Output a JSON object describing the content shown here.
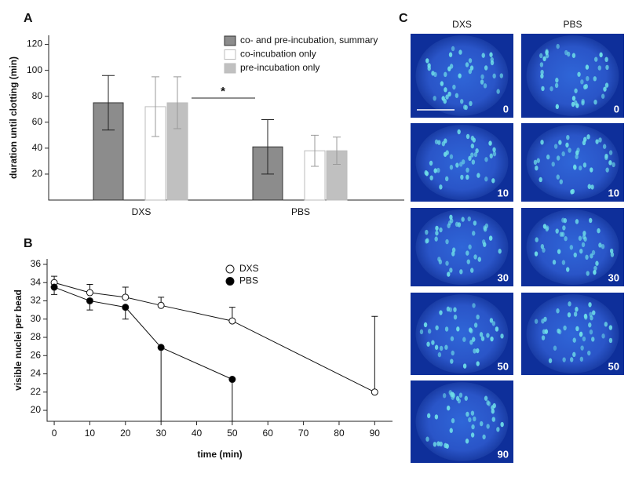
{
  "chart_data": [
    {
      "type": "bar",
      "panel": "A",
      "ylabel": "duration until clotting (min)",
      "categories": [
        "DXS",
        "PBS"
      ],
      "series": [
        {
          "name": "co- and pre-incubation, summary",
          "color": "#8c8c8c",
          "values": [
            75,
            41
          ],
          "errors": [
            21,
            21
          ]
        },
        {
          "name": "co-incubation only",
          "color": "#ffffff",
          "values": [
            72,
            38
          ],
          "errors": [
            23,
            12
          ]
        },
        {
          "name": "pre-incubation only",
          "color": "#c0c0c0",
          "values": [
            75,
            38
          ],
          "errors": [
            20,
            10.5
          ]
        }
      ],
      "annotation": "*",
      "ylim": [
        0,
        127
      ],
      "yticks": [
        20,
        40,
        60,
        80,
        100,
        120
      ]
    },
    {
      "type": "line",
      "panel": "B",
      "xlabel": "time (min)",
      "ylabel": "visible nuclei per bead",
      "series": [
        {
          "name": "DXS",
          "color": "#ffffff",
          "x": [
            0,
            10,
            20,
            30,
            50,
            90
          ],
          "values": [
            34,
            32.9,
            32.4,
            31.5,
            29.8,
            22
          ],
          "errors": [
            0.7,
            0.9,
            1.1,
            0.9,
            1.5,
            8.3
          ],
          "error_direction": "up"
        },
        {
          "name": "PBS",
          "color": "#000000",
          "x": [
            0,
            10,
            20,
            30,
            50
          ],
          "values": [
            33.5,
            32,
            31.3,
            26.9,
            23.4
          ],
          "errors": [
            0.8,
            1,
            1.3,
            8.1,
            4.6
          ],
          "error_direction": "down"
        }
      ],
      "xlim": [
        -2,
        95
      ],
      "xticks": [
        0,
        10,
        20,
        30,
        40,
        50,
        60,
        70,
        80,
        90
      ],
      "ylim": [
        18.8,
        36.6
      ],
      "yticks": [
        20,
        22,
        24,
        26,
        28,
        30,
        32,
        34,
        36
      ]
    }
  ],
  "panel_c": {
    "label": "C",
    "columns": [
      "DXS",
      "PBS"
    ],
    "images": [
      {
        "column": 0,
        "label": "0"
      },
      {
        "column": 1,
        "label": "0"
      },
      {
        "column": 0,
        "label": "10"
      },
      {
        "column": 1,
        "label": "10"
      },
      {
        "column": 0,
        "label": "30"
      },
      {
        "column": 1,
        "label": "30"
      },
      {
        "column": 0,
        "label": "50"
      },
      {
        "column": 1,
        "label": "50"
      },
      {
        "column": 0,
        "label": "90"
      }
    ]
  }
}
